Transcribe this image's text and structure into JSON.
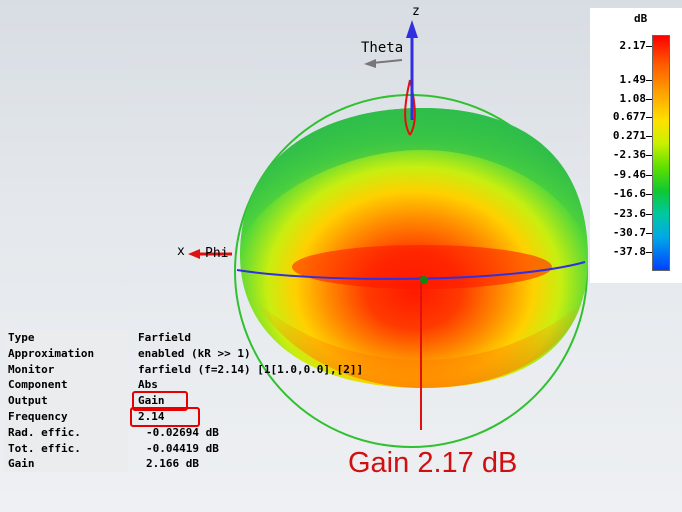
{
  "viewport": {
    "axis_z": "z",
    "axis_x": "x",
    "theta_label": "Theta",
    "phi_label": "Phi"
  },
  "colorbar": {
    "unit": "dB",
    "labels": [
      "2.17",
      "1.49",
      "1.08",
      "0.677",
      "0.271",
      "-2.36",
      "-9.46",
      "-16.6",
      "-23.6",
      "-30.7",
      "-37.8"
    ]
  },
  "info": [
    {
      "key": "Type",
      "value": "Farfield"
    },
    {
      "key": "Approximation",
      "value": "enabled (kR >> 1)"
    },
    {
      "key": "Monitor",
      "value": "farfield (f=2.14) [1[1.0,0.0],[2]]"
    },
    {
      "key": "Component",
      "value": "Abs"
    },
    {
      "key": "Output",
      "value": "Gain"
    },
    {
      "key": "Frequency",
      "value": "2.14"
    },
    {
      "key": "Rad. effic.",
      "value": "-0.02694 dB"
    },
    {
      "key": "Tot. effic.",
      "value": "-0.04419 dB"
    },
    {
      "key": "Gain",
      "value": "2.166 dB"
    }
  ],
  "annotation": "Gain 2.17 dB",
  "colors": {
    "highlight": "#e60000",
    "annotation": "#d01010",
    "axis_blue": "#3030e0",
    "ring_green": "#30c030"
  }
}
